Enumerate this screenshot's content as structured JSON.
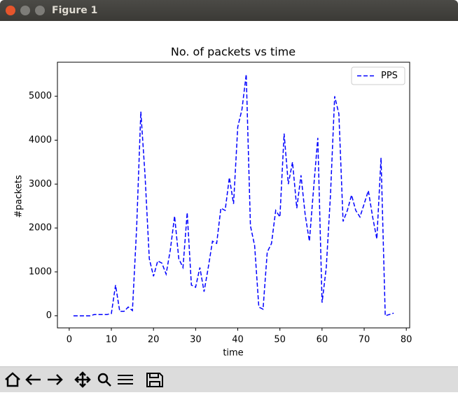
{
  "window": {
    "title": "Figure 1"
  },
  "chart_data": {
    "type": "line",
    "title": "No. of packets vs time",
    "x_label": "time",
    "y_label": "#packets",
    "x": [
      1,
      2,
      3,
      4,
      5,
      6,
      7,
      8,
      9,
      10,
      11,
      12,
      13,
      14,
      15,
      16,
      17,
      18,
      19,
      20,
      21,
      22,
      23,
      24,
      25,
      26,
      27,
      28,
      29,
      30,
      31,
      32,
      33,
      34,
      35,
      36,
      37,
      38,
      39,
      40,
      41,
      42,
      43,
      44,
      45,
      46,
      47,
      48,
      49,
      50,
      51,
      52,
      53,
      54,
      55,
      56,
      57,
      58,
      59,
      60,
      61,
      62,
      63,
      64,
      65,
      66,
      67,
      68,
      69,
      70,
      71,
      72,
      73,
      74,
      75,
      76,
      77
    ],
    "series": [
      {
        "name": "PPS",
        "color": "#0000ff",
        "dash": true,
        "values": [
          0,
          0,
          0,
          0,
          0,
          30,
          30,
          30,
          30,
          50,
          700,
          100,
          100,
          200,
          120,
          2000,
          4650,
          3200,
          1300,
          900,
          1250,
          1200,
          950,
          1500,
          2270,
          1300,
          1100,
          2350,
          700,
          650,
          1100,
          550,
          1100,
          1700,
          1650,
          2450,
          2400,
          3150,
          2550,
          4300,
          4700,
          5500,
          2050,
          1600,
          200,
          150,
          1450,
          1650,
          2400,
          2250,
          4150,
          3000,
          3500,
          2450,
          3200,
          2300,
          1700,
          2900,
          4050,
          300,
          1100,
          2750,
          5000,
          4600,
          2150,
          2400,
          2750,
          2400,
          2250,
          2550,
          2850,
          2250,
          1750,
          3600,
          0,
          30,
          60
        ]
      }
    ],
    "xlim": [
      -2.8,
      80.8
    ],
    "ylim": [
      -275,
      5775
    ],
    "xticks": [
      0,
      10,
      20,
      30,
      40,
      50,
      60,
      70,
      80
    ],
    "yticks": [
      0,
      1000,
      2000,
      3000,
      4000,
      5000
    ],
    "grid": false,
    "legend": "upper right"
  }
}
